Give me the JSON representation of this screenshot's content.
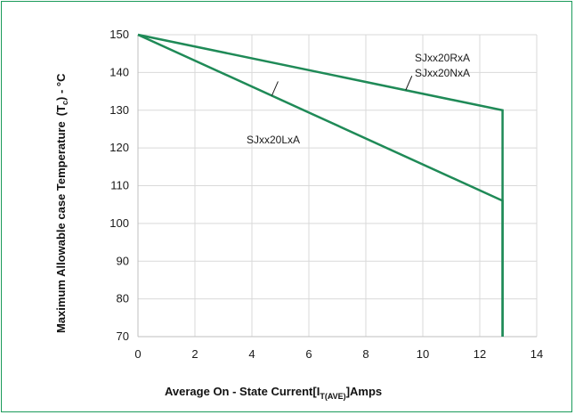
{
  "chart_data": {
    "type": "line",
    "xlabel": {
      "main": "Average On - State Current[I",
      "sub": "T(AVE)",
      "tail": "]Amps"
    },
    "ylabel": {
      "main": "Maximum Allowable case Temperature",
      "paren_open": "(T",
      "sub": "c",
      "paren_close": ")",
      "unit": " - °C"
    },
    "xlim": [
      0,
      14
    ],
    "ylim": [
      70,
      150
    ],
    "xticks": [
      "0",
      "2",
      "4",
      "6",
      "8",
      "10",
      "12",
      "14"
    ],
    "yticks": [
      "70",
      "80",
      "90",
      "100",
      "110",
      "120",
      "130",
      "140",
      "150"
    ],
    "grid": true,
    "line_color": "#1f8a57",
    "series": [
      {
        "labels": [
          "SJxx20RxA",
          "SJxx20NxA"
        ],
        "points": [
          [
            0,
            150
          ],
          [
            12.8,
            130
          ],
          [
            12.8,
            70
          ]
        ]
      },
      {
        "labels": [
          "SJxx20LxA"
        ],
        "points": [
          [
            0,
            150
          ],
          [
            12.8,
            106
          ],
          [
            12.8,
            70
          ]
        ]
      }
    ]
  }
}
